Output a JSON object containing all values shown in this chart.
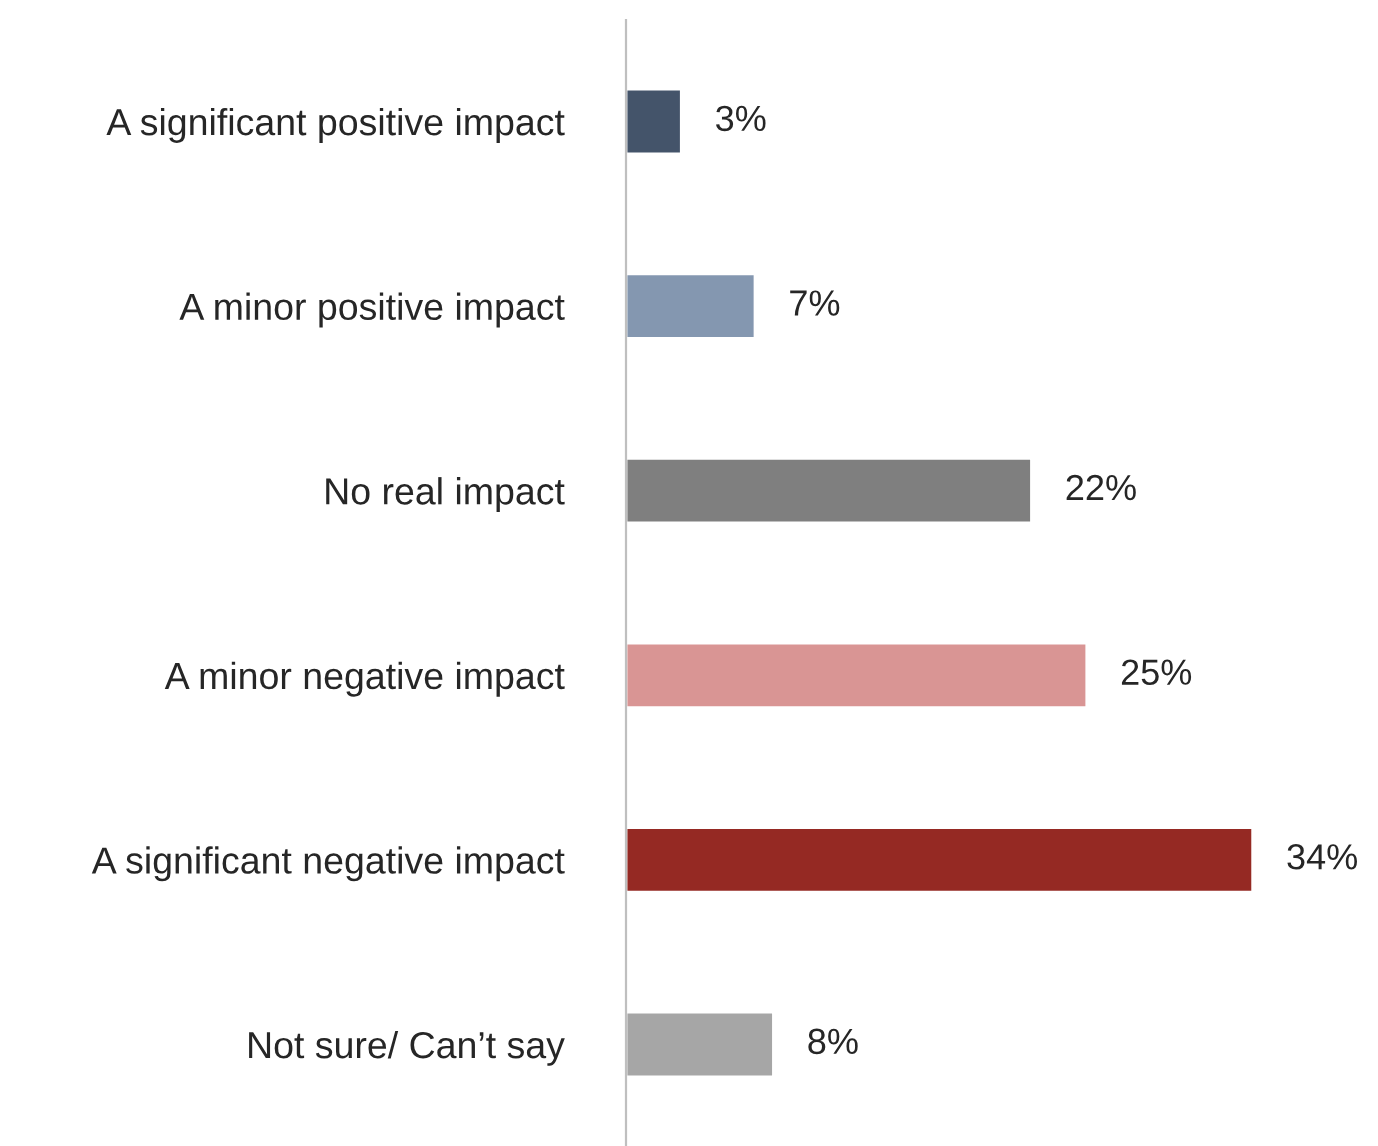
{
  "chart_data": {
    "type": "bar",
    "orientation": "horizontal",
    "categories": [
      "A significant positive impact",
      "A minor positive impact",
      "No real impact",
      "A minor negative impact",
      "A significant negative impact",
      "Not sure/ Can’t say"
    ],
    "values": [
      3,
      7,
      22,
      25,
      34,
      8
    ],
    "colors": [
      "#44546a",
      "#8497b0",
      "#7f7f7f",
      "#d99594",
      "#952923",
      "#a6a6a6"
    ],
    "value_labels": [
      "3%",
      "7%",
      "22%",
      "25%",
      "34%",
      "8%"
    ],
    "grid": false,
    "legend": false
  }
}
